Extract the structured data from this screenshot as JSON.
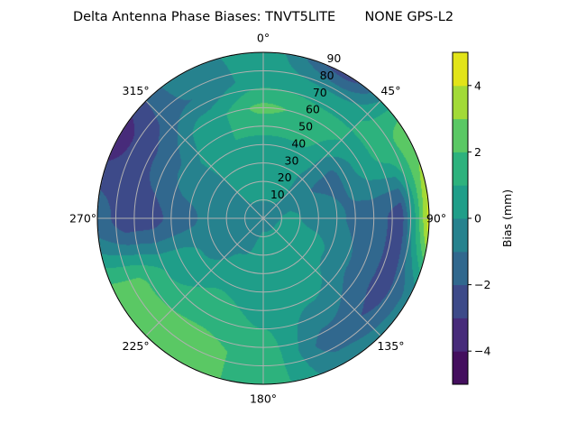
{
  "chart_data": {
    "type": "heatmap",
    "subtype": "polar-contourf",
    "title": "Delta Antenna Phase Biases: TNVT5LITE       NONE GPS-L2",
    "colorbar_label": "Bias (mm)",
    "colormap": "viridis",
    "levels": [
      -5,
      -4,
      -3,
      -2,
      -1,
      0,
      1,
      2,
      3,
      4,
      5
    ],
    "level_colors": [
      "#440f5e",
      "#472b7a",
      "#3d4a89",
      "#31688e",
      "#26828e",
      "#1f9e89",
      "#2db27d",
      "#5ac864",
      "#a2da37",
      "#e2e418"
    ],
    "colorbar_ticks": [
      "−4",
      "−2",
      "0",
      "2",
      "4"
    ],
    "colorbar_tick_values": [
      -4,
      -2,
      0,
      2,
      4
    ],
    "angular_ticks": [
      "0°",
      "45°",
      "90°",
      "135°",
      "180°",
      "225°",
      "270°",
      "315°"
    ],
    "angular_tick_values": [
      0,
      45,
      90,
      135,
      180,
      225,
      270,
      315
    ],
    "radial_ticks": [
      "10",
      "20",
      "30",
      "40",
      "50",
      "60",
      "70",
      "80",
      "90"
    ],
    "radial_tick_values": [
      10,
      20,
      30,
      40,
      50,
      60,
      70,
      80,
      90
    ],
    "radial_range": [
      0,
      90
    ],
    "theta_zero": "top",
    "theta_direction": "clockwise",
    "grid": true,
    "azimuth": [
      0,
      30,
      60,
      90,
      120,
      150,
      180,
      210,
      240,
      270,
      300,
      330
    ],
    "radius": [
      0,
      15,
      30,
      45,
      60,
      75,
      90
    ],
    "bias": [
      [
        -0.5,
        0.3,
        0.5,
        1.0,
        2.3,
        0.5,
        0.5
      ],
      [
        -0.5,
        0.3,
        0.3,
        1.0,
        1.5,
        0.5,
        -2.5
      ],
      [
        -0.5,
        -0.3,
        -1.0,
        -1.2,
        0.5,
        1.5,
        2.5
      ],
      [
        -0.5,
        0.3,
        -0.5,
        -1.0,
        -1.5,
        -2.5,
        4.5
      ],
      [
        -0.5,
        0.5,
        0.5,
        -0.5,
        -1.5,
        -2.5,
        -0.5
      ],
      [
        -0.5,
        0.5,
        0.5,
        0.5,
        -0.5,
        -1.5,
        -0.5
      ],
      [
        -0.5,
        0.5,
        0.5,
        0.7,
        1.0,
        1.5,
        1.5
      ],
      [
        -0.5,
        -0.3,
        0.3,
        1.0,
        1.5,
        2.5,
        2.5
      ],
      [
        -0.5,
        -0.5,
        -0.5,
        0.5,
        1.0,
        2.3,
        2.5
      ],
      [
        -0.5,
        -0.5,
        -0.7,
        -1.5,
        -2.3,
        -2.5,
        -1.5
      ],
      [
        -0.5,
        -0.3,
        -0.5,
        -0.5,
        -1.5,
        -2.5,
        -3.5
      ],
      [
        -0.5,
        0.3,
        0.5,
        1.0,
        0.5,
        -1.0,
        -0.5
      ]
    ]
  }
}
